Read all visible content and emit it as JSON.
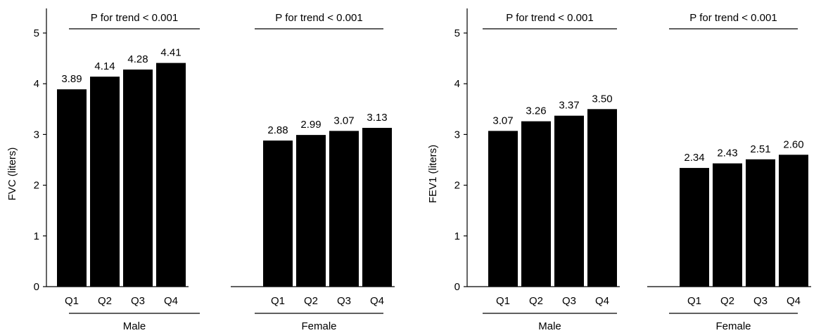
{
  "chart_data": [
    {
      "type": "bar",
      "ylabel": "FVC (liters)",
      "ylim": [
        0,
        5
      ],
      "yticks": [
        "0",
        "1",
        "2",
        "3",
        "4",
        "5"
      ],
      "groups": [
        {
          "name": "Male",
          "p_trend": "P for trend < 0.001",
          "categories": [
            "Q1",
            "Q2",
            "Q3",
            "Q4"
          ],
          "values": [
            3.89,
            4.14,
            4.28,
            4.41
          ],
          "labels": [
            "3.89",
            "4.14",
            "4.28",
            "4.41"
          ]
        },
        {
          "name": "Female",
          "p_trend": "P for trend < 0.001",
          "categories": [
            "Q1",
            "Q2",
            "Q3",
            "Q4"
          ],
          "values": [
            2.88,
            2.99,
            3.07,
            3.13
          ],
          "labels": [
            "2.88",
            "2.99",
            "3.07",
            "3.13"
          ]
        }
      ],
      "bar_color": "#000000",
      "grid": false
    },
    {
      "type": "bar",
      "ylabel": "FEV1 (liters)",
      "ylim": [
        0,
        5
      ],
      "yticks": [
        "0",
        "1",
        "2",
        "3",
        "4",
        "5"
      ],
      "groups": [
        {
          "name": "Male",
          "p_trend": "P for trend < 0.001",
          "categories": [
            "Q1",
            "Q2",
            "Q3",
            "Q4"
          ],
          "values": [
            3.07,
            3.26,
            3.37,
            3.5
          ],
          "labels": [
            "3.07",
            "3.26",
            "3.37",
            "3.50"
          ]
        },
        {
          "name": "Female",
          "p_trend": "P for trend < 0.001",
          "categories": [
            "Q1",
            "Q2",
            "Q3",
            "Q4"
          ],
          "values": [
            2.34,
            2.43,
            2.51,
            2.6
          ],
          "labels": [
            "2.34",
            "2.43",
            "2.51",
            "2.60"
          ]
        }
      ],
      "bar_color": "#000000",
      "grid": false
    }
  ]
}
